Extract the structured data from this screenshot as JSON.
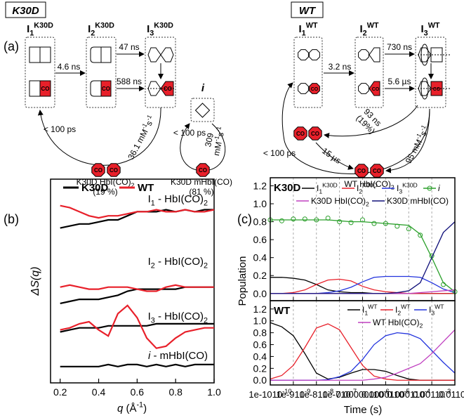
{
  "diagram": {
    "panel": "(a)",
    "co": "CO",
    "k30d": {
      "title": "K30D",
      "states": [
        {
          "text": "I",
          "sub": "1",
          "sup": "K30D"
        },
        {
          "text": "I",
          "sub": "2",
          "sup": "K30D"
        },
        {
          "text": "I",
          "sub": "3",
          "sup": "K30D"
        }
      ],
      "rates": [
        "4.6 ns",
        "47 ns",
        "588 ns"
      ],
      "recombination": "< 100 ps",
      "bimolecular": {
        "text": "36.1 mM",
        "sup": "-1",
        "text2": "s",
        "sup2": "-1"
      },
      "product": {
        "text": "K30D HbI(CO)",
        "sub": "2"
      },
      "product_fraction": "(19 %)",
      "intermediate": "i",
      "i_recombination": "< 100 ps",
      "i_bimolecular_value": "309",
      "i_bimolecular_unit": {
        "text": "mM",
        "sup": "-1",
        "text2": "s",
        "sup2": "-1"
      },
      "i_product": "K30D mHbI(CO)",
      "i_fraction": "(81 %)"
    },
    "wt": {
      "title": "WT",
      "states": [
        {
          "text": "I",
          "sub": "1",
          "sup": "WT"
        },
        {
          "text": "I",
          "sub": "2",
          "sup": "WT"
        },
        {
          "text": "I",
          "sub": "3",
          "sup": "WT"
        }
      ],
      "rates": [
        "3.2 ns",
        "730 ns",
        "5.6 µs"
      ],
      "branch": "93 ns",
      "branch_fraction": "(19%)",
      "recombination": "< 100 ps",
      "transfer": "15 µs",
      "bimolecular": {
        "text": "95 mM",
        "sup": "-1",
        "text2": "s",
        "sup2": "-1"
      },
      "product": {
        "text": "WT HbI(CO)",
        "sub": "2"
      }
    }
  },
  "chart_data": [
    {
      "type": "line",
      "panel_label": "(b)",
      "ylabel": "ΔS(q)",
      "xlabel": {
        "it": "q",
        "text": " (Å",
        "sup": "-1",
        "text2": ")"
      },
      "x": [
        0.2,
        0.25,
        0.3,
        0.35,
        0.4,
        0.45,
        0.5,
        0.55,
        0.6,
        0.65,
        0.7,
        0.75,
        0.8,
        0.85,
        0.9,
        0.95,
        1.0
      ],
      "xlim": [
        0.15,
        1.0
      ],
      "xticks": [
        0.2,
        0.4,
        0.6,
        0.8,
        {
          "value": 1,
          "label": "1.0"
        }
      ],
      "ylim": [
        0,
        10
      ],
      "groups": [
        {
          "label": {
            "text": "I",
            "sub": "1",
            "text2": " - HbI(CO)",
            "sub2": "2"
          },
          "series": [
            {
              "name": "K30D",
              "color": "#000000",
              "values": [
                7.6,
                7.7,
                7.8,
                7.8,
                7.9,
                8.0,
                8.0,
                8.2,
                8.4,
                8.4,
                8.4,
                8.5,
                8.4,
                8.5,
                8.4,
                8.5,
                8.5
              ]
            },
            {
              "name": "WT",
              "color": "#e8202a",
              "values": [
                8.7,
                8.6,
                8.4,
                8.2,
                8.1,
                8.2,
                8.2,
                8.3,
                8.4,
                8.4,
                8.5,
                8.4,
                8.4,
                8.5,
                8.4,
                8.4,
                8.5
              ]
            }
          ]
        },
        {
          "label": {
            "text": "I",
            "sub": "2",
            "text2": " - HbI(CO)",
            "sub2": "2"
          },
          "series": [
            {
              "name": "K30D",
              "color": "#000000",
              "values": [
                3.9,
                4.0,
                4.1,
                4.1,
                4.1,
                4.2,
                4.3,
                4.5,
                4.6,
                4.6,
                4.6,
                4.6,
                4.6,
                4.7,
                4.7,
                4.7,
                4.7
              ]
            },
            {
              "name": "WT",
              "color": "#e8202a",
              "values": [
                4.7,
                4.8,
                4.7,
                4.6,
                4.6,
                4.7,
                4.7,
                4.7,
                4.6,
                4.5,
                4.5,
                4.7,
                4.8,
                4.7,
                4.7,
                4.7,
                4.7
              ]
            }
          ]
        },
        {
          "label": {
            "text": "I",
            "sub": "3",
            "text2": " - HbI(CO)",
            "sub2": "2"
          },
          "series": [
            {
              "name": "K30D",
              "color": "#000000",
              "values": [
                2.5,
                2.6,
                2.7,
                2.7,
                2.7,
                2.8,
                2.8,
                2.8,
                2.8,
                2.8,
                2.9,
                2.9,
                2.9,
                2.9,
                2.9,
                2.9,
                2.9
              ]
            },
            {
              "name": "WT",
              "color": "#e8202a",
              "values": [
                2.6,
                2.7,
                2.9,
                3.0,
                2.6,
                2.3,
                3.4,
                3.8,
                3.2,
                2.2,
                1.7,
                1.8,
                2.2,
                2.5,
                2.6,
                2.7,
                2.7
              ]
            }
          ]
        },
        {
          "label": {
            "it": "i",
            "text": " - mHbI(CO)"
          },
          "series": [
            {
              "name": "K30D",
              "color": "#000000",
              "values": [
                0.8,
                0.8,
                0.8,
                0.8,
                0.8,
                0.9,
                0.8,
                0.9,
                0.9,
                0.8,
                0.9,
                0.8,
                0.9,
                0.8,
                0.9,
                0.9,
                0.9
              ]
            }
          ]
        }
      ]
    },
    {
      "type": "line",
      "panel_label": "(c)",
      "label": "K30D",
      "ylabel": "Population",
      "xscale": "log",
      "xlim": [
        1e-10,
        0.01
      ],
      "ylim": [
        -0.08,
        1.29
      ],
      "yticks": [
        {
          "value": 0,
          "label": "0.0"
        },
        0.2,
        0.4,
        0.6,
        0.8,
        {
          "value": 1,
          "label": "1.0"
        },
        1.2
      ],
      "x": [
        1e-10,
        3.16e-10,
        1e-09,
        3.16e-09,
        1e-08,
        3.16e-08,
        1e-07,
        3.16e-07,
        1e-06,
        3.16e-06,
        1e-05,
        3.16e-05,
        0.0001,
        0.000316,
        0.001,
        0.00316,
        0.01
      ],
      "series": [
        {
          "name": {
            "text": "I",
            "sub": "1",
            "sup": "K30D"
          },
          "color": "#000000",
          "values": [
            0.18,
            0.18,
            0.17,
            0.15,
            0.1,
            0.04,
            0.02,
            0.01,
            0.01,
            0,
            0,
            0,
            0,
            0,
            0,
            0,
            0
          ]
        },
        {
          "name": {
            "text": "I",
            "sub": "2",
            "sup": "K30D"
          },
          "color": "#e8202a",
          "values": [
            0,
            0,
            0.01,
            0.04,
            0.1,
            0.15,
            0.16,
            0.14,
            0.08,
            0.04,
            0.02,
            0.01,
            0,
            0,
            0,
            0,
            0
          ]
        },
        {
          "name": {
            "text": "I",
            "sub": "3",
            "sup": "K30D"
          },
          "color": "#2233dd",
          "values": [
            0,
            0,
            0,
            0,
            0,
            0.01,
            0.03,
            0.07,
            0.13,
            0.18,
            0.19,
            0.19,
            0.19,
            0.18,
            0.12,
            0.05,
            0.01
          ]
        },
        {
          "name": {
            "it": "i"
          },
          "color": "#2ca02c",
          "values": [
            0.82,
            0.82,
            0.82,
            0.82,
            0.82,
            0.82,
            0.81,
            0.8,
            0.8,
            0.79,
            0.78,
            0.77,
            0.76,
            0.66,
            0.4,
            0.12,
            0.02
          ],
          "points": [
            0.82,
            0.81,
            0.83,
            0.83,
            0.82,
            0.84,
            0.8,
            0.79,
            0.82,
            0.78,
            0.78,
            0.75,
            0.72,
            0.65,
            0.42,
            0.1,
            0.02
          ]
        },
        {
          "name": {
            "text": "K30D HbI(CO)",
            "sub": "2"
          },
          "color": "#c040c0",
          "values": [
            0,
            0,
            0,
            0,
            0,
            0,
            0,
            0,
            0,
            0,
            0,
            0,
            0,
            0.01,
            0.02,
            0.03,
            0.04
          ]
        },
        {
          "name": "K30D mHbI(CO)",
          "color": "#10107a",
          "values": [
            0,
            0,
            0,
            0,
            0,
            0,
            0,
            0,
            0,
            0,
            0,
            0.01,
            0.03,
            0.12,
            0.4,
            0.68,
            0.8
          ]
        }
      ]
    },
    {
      "type": "line",
      "label": "WT",
      "xlabel": "Time (s)",
      "xscale": "log",
      "xlim": [
        1e-10,
        0.01
      ],
      "xticks": [
        {
          "value": 1e-10,
          "label": "10",
          "sup": "-10"
        },
        {
          "value": 1e-09,
          "label": "10",
          "sup": "-9"
        },
        {
          "value": 1e-08,
          "label": "10",
          "sup": "-8"
        },
        {
          "value": 1e-07,
          "label": "10",
          "sup": "-7"
        },
        {
          "value": 1e-06,
          "label": "10",
          "sup": "-6"
        },
        {
          "value": 1e-05,
          "label": "10",
          "sup": "-5"
        },
        {
          "value": 0.0001,
          "label": "10",
          "sup": "-4"
        },
        {
          "value": 0.001,
          "label": "10",
          "sup": "-3"
        },
        {
          "value": 0.01,
          "label": "10",
          "sup": "-2"
        }
      ],
      "ylim": [
        -0.08,
        1.34
      ],
      "yticks": [
        {
          "value": 0,
          "label": "0.0"
        },
        0.2,
        0.4,
        0.6,
        0.8,
        {
          "value": 1,
          "label": "1.0"
        },
        1.2
      ],
      "x": [
        1e-10,
        3.16e-10,
        1e-09,
        3.16e-09,
        1e-08,
        3.16e-08,
        1e-07,
        3.16e-07,
        1e-06,
        3.16e-06,
        1e-05,
        3.16e-05,
        0.0001,
        0.000316,
        0.001,
        0.00316,
        0.01
      ],
      "series": [
        {
          "name": {
            "text": "I",
            "sub": "1",
            "sup": "WT"
          },
          "color": "#000000",
          "values": [
            0.97,
            0.9,
            0.75,
            0.45,
            0.12,
            0.02,
            0.05,
            0.12,
            0.18,
            0.18,
            0.15,
            0.08,
            0.02,
            0,
            0,
            0,
            0
          ]
        },
        {
          "name": {
            "text": "I",
            "sub": "2",
            "sup": "WT"
          },
          "color": "#e8202a",
          "values": [
            0.02,
            0.08,
            0.25,
            0.55,
            0.88,
            0.95,
            0.85,
            0.55,
            0.25,
            0.07,
            0.02,
            0,
            0,
            0,
            0,
            0,
            0
          ]
        },
        {
          "name": {
            "text": "I",
            "sub": "3",
            "sup": "WT"
          },
          "color": "#2233dd",
          "values": [
            0,
            0,
            0,
            0,
            0,
            0.01,
            0.06,
            0.15,
            0.35,
            0.6,
            0.75,
            0.8,
            0.78,
            0.7,
            0.5,
            0.3,
            0.12
          ]
        },
        {
          "name": {
            "text": "WT HbI(CO)",
            "sub": "2"
          },
          "color": "#c040c0",
          "values": [
            0,
            0,
            0,
            0,
            0,
            0,
            0,
            0,
            0,
            0.02,
            0.05,
            0.12,
            0.2,
            0.28,
            0.45,
            0.65,
            0.85
          ]
        }
      ]
    }
  ]
}
